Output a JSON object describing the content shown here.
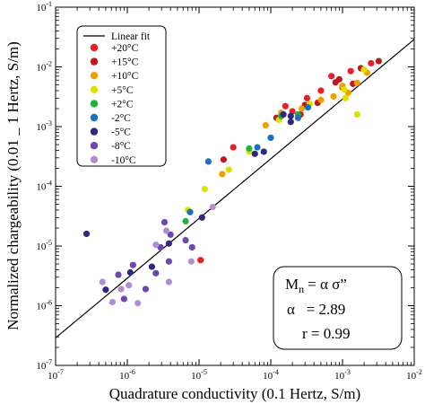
{
  "chart_data": {
    "type": "scatter",
    "xlabel": "Quadrature conductivity (0.1 Hertz, S/m)",
    "ylabel": "Normalized chargeability (0.01 _ 1 Hertz, S/m)",
    "xscale": "log",
    "yscale": "log",
    "xlim": [
      1e-07,
      0.01
    ],
    "ylim": [
      1e-07,
      0.1
    ],
    "x_ticks": [
      {
        "v": 1e-07,
        "b": "10",
        "e": "-7"
      },
      {
        "v": 1e-06,
        "b": "10",
        "e": "-6"
      },
      {
        "v": 1e-05,
        "b": "10",
        "e": "-5"
      },
      {
        "v": 0.0001,
        "b": "10",
        "e": "-4"
      },
      {
        "v": 0.001,
        "b": "10",
        "e": "-3"
      },
      {
        "v": 0.01,
        "b": "10",
        "e": "-2"
      }
    ],
    "y_ticks": [
      {
        "v": 1e-07,
        "b": "10",
        "e": "-7"
      },
      {
        "v": 1e-06,
        "b": "10",
        "e": "-6"
      },
      {
        "v": 1e-05,
        "b": "10",
        "e": "-5"
      },
      {
        "v": 0.0001,
        "b": "10",
        "e": "-4"
      },
      {
        "v": 0.001,
        "b": "10",
        "e": "-3"
      },
      {
        "v": 0.01,
        "b": "10",
        "e": "-2"
      },
      {
        "v": 0.1,
        "b": "10",
        "e": "-1"
      }
    ],
    "legend_position": "top-left",
    "fit": {
      "name": "Linear fit",
      "color": "#4a1a1a",
      "equation_lhs": "M",
      "equation_lhs_sub": "n",
      "equation_rhs": "= α σ”",
      "alpha_label": "α   = 2.89",
      "r_label": "r = 0.99",
      "alpha": 2.89,
      "x": [
        1e-07,
        0.01
      ],
      "y": [
        2.89e-07,
        0.0289
      ]
    },
    "series": [
      {
        "name": "+20°C",
        "color": "#e8202a",
        "points": [
          [
            3e-05,
            0.00045
          ],
          [
            0.00016,
            0.0022
          ],
          [
            0.00032,
            0.003
          ],
          [
            0.0007,
            0.007
          ],
          [
            0.0013,
            0.0085
          ],
          [
            0.0025,
            0.0115
          ],
          [
            1.05e-05,
            5.8e-06
          ],
          [
            0.0005,
            0.004
          ],
          [
            0.0002,
            0.0018
          ],
          [
            0.001,
            0.0045
          ]
        ]
      },
      {
        "name": "+15°C",
        "color": "#c01820",
        "points": [
          [
            2.2e-05,
            0.00028
          ],
          [
            0.00012,
            0.0014
          ],
          [
            0.00045,
            0.0025
          ],
          [
            0.0009,
            0.0062
          ],
          [
            0.0018,
            0.0095
          ],
          [
            0.0032,
            0.0125
          ],
          [
            0.0003,
            0.0023
          ],
          [
            0.0014,
            0.0052
          ],
          [
            0.0008,
            0.0055
          ],
          [
            0.00026,
            0.0016
          ]
        ]
      },
      {
        "name": "+10°C",
        "color": "#f0a000",
        "points": [
          [
            2.1e-05,
            0.00016
          ],
          [
            8.5e-05,
            0.00105
          ],
          [
            0.00027,
            0.002
          ],
          [
            0.00075,
            0.0032
          ],
          [
            0.0016,
            0.0054
          ],
          [
            0.0022,
            0.008
          ],
          [
            0.001,
            0.0048
          ],
          [
            0.0005,
            0.0028
          ],
          [
            0.00014,
            0.0017
          ],
          [
            0.0012,
            0.0037
          ]
        ]
      },
      {
        "name": "+5°C",
        "color": "#e0e000",
        "points": [
          [
            7e-06,
            4e-05
          ],
          [
            1.2e-05,
            9e-05
          ],
          [
            2.6e-05,
            0.00019
          ],
          [
            5e-05,
            0.00038
          ],
          [
            0.00013,
            0.0013
          ],
          [
            0.00035,
            0.0024
          ],
          [
            0.0011,
            0.003
          ],
          [
            0.0016,
            0.0016
          ],
          [
            0.002,
            0.009
          ],
          [
            0.00105,
            0.0042
          ]
        ]
      },
      {
        "name": "+2°C",
        "color": "#20b040",
        "points": [
          [
            6.5e-06,
            2.6e-05
          ],
          [
            5e-05,
            0.00043
          ],
          [
            0.00014,
            0.0015
          ],
          [
            0.00024,
            0.0016
          ]
        ]
      },
      {
        "name": "-2°C",
        "color": "#1a70c0",
        "points": [
          [
            7.5e-06,
            3.7e-05
          ],
          [
            1.35e-05,
            0.00026
          ],
          [
            6.5e-05,
            0.00045
          ],
          [
            0.0001,
            0.00065
          ],
          [
            0.00024,
            0.0014
          ],
          [
            0.00033,
            0.0021
          ]
        ]
      },
      {
        "name": "-5°C",
        "color": "#302880",
        "points": [
          [
            2.7e-07,
            1.6e-05
          ],
          [
            5e-07,
            1.85e-06
          ],
          [
            1.1e-06,
            3.6e-06
          ],
          [
            2.2e-06,
            4.5e-06
          ],
          [
            3.8e-06,
            1.1e-05
          ],
          [
            1.1e-05,
            3e-05
          ],
          [
            6e-05,
            0.00035
          ],
          [
            8e-05,
            0.00038
          ],
          [
            0.00015,
            0.0016
          ],
          [
            0.00019,
            0.0012
          ],
          [
            0.00019,
            0.0015
          ]
        ]
      },
      {
        "name": "-8°C",
        "color": "#6a48b0",
        "points": [
          [
            3.3e-06,
            2.5e-05
          ],
          [
            4e-06,
            1.55e-05
          ],
          [
            6.5e-06,
            1.25e-05
          ],
          [
            8e-06,
            9.5e-06
          ],
          [
            2.5e-06,
            3.5e-06
          ],
          [
            3.8e-06,
            5.5e-06
          ],
          [
            2.9e-06,
            9.5e-06
          ],
          [
            1.2e-06,
            4.8e-06
          ],
          [
            7.5e-07,
            3.3e-06
          ],
          [
            9e-07,
            1.3e-06
          ],
          [
            1.8e-06,
            1.9e-06
          ]
        ]
      },
      {
        "name": "-10°C",
        "color": "#b08ed0",
        "points": [
          [
            4.5e-07,
            2.5e-06
          ],
          [
            6.2e-07,
            1.15e-06
          ],
          [
            8.2e-07,
            1.9e-06
          ],
          [
            1.05e-06,
            2.2e-06
          ],
          [
            1.4e-06,
            1.1e-06
          ],
          [
            3.8e-06,
            2.5e-06
          ],
          [
            7.8e-06,
            5.5e-06
          ],
          [
            1.55e-05,
            4.5e-05
          ],
          [
            2.5e-06,
            1.05e-05
          ],
          [
            3.5e-06,
            1.8e-05
          ]
        ]
      }
    ]
  }
}
